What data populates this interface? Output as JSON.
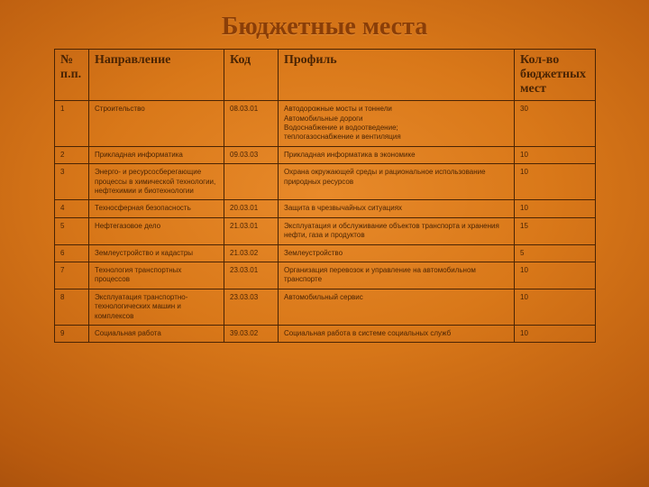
{
  "title": "Бюджетные места",
  "columns": [
    "№ п.п.",
    "Направление",
    "Код",
    "Профиль",
    "Кол-во бюджетных мест"
  ],
  "rows": [
    {
      "n": "1",
      "dir": "Строительство",
      "code": "08.03.01",
      "profile": "Автодорожные мосты и тоннели\nАвтомобильные дороги\nВодоснабжение и водоотведение;\nтеплогазоснабжение и вентиляция",
      "count": "30"
    },
    {
      "n": "2",
      "dir": "Прикладная информатика",
      "code": "09.03.03",
      "profile": "Прикладная информатика в экономике",
      "count": "10"
    },
    {
      "n": "3",
      "dir": "Энерго- и ресурсосберегающие процессы в химической технологии, нефтехимии и биотехнологии",
      "code": "",
      "profile": "Охрана окружающей среды и рациональное использование природных ресурсов",
      "count": "10"
    },
    {
      "n": "4",
      "dir": "Техносферная безопасность",
      "code": "20.03.01",
      "profile": "Защита в чрезвычайных ситуациях",
      "count": "10"
    },
    {
      "n": "5",
      "dir": "Нефтегазовое дело",
      "code": "21.03.01",
      "profile": "Эксплуатация и обслуживание объектов транспорта и хранения нефти, газа и продуктов",
      "count": "15"
    },
    {
      "n": "6",
      "dir": "Землеустройство и кадастры",
      "code": "21.03.02",
      "profile": "Землеустройство",
      "count": "5"
    },
    {
      "n": "7",
      "dir": "Технология транспортных процессов",
      "code": "23.03.01",
      "profile": "Организация перевозок и управление на автомобильном транспорте",
      "count": "10"
    },
    {
      "n": "8",
      "dir": "Эксплуатация транспортно-технологических машин и комплексов",
      "code": "23.03.03",
      "profile": "Автомобильный сервис",
      "count": "10"
    },
    {
      "n": "9",
      "dir": "Социальная работа",
      "code": "39.03.02",
      "profile": "Социальная работа в системе социальных служб",
      "count": "10"
    }
  ]
}
